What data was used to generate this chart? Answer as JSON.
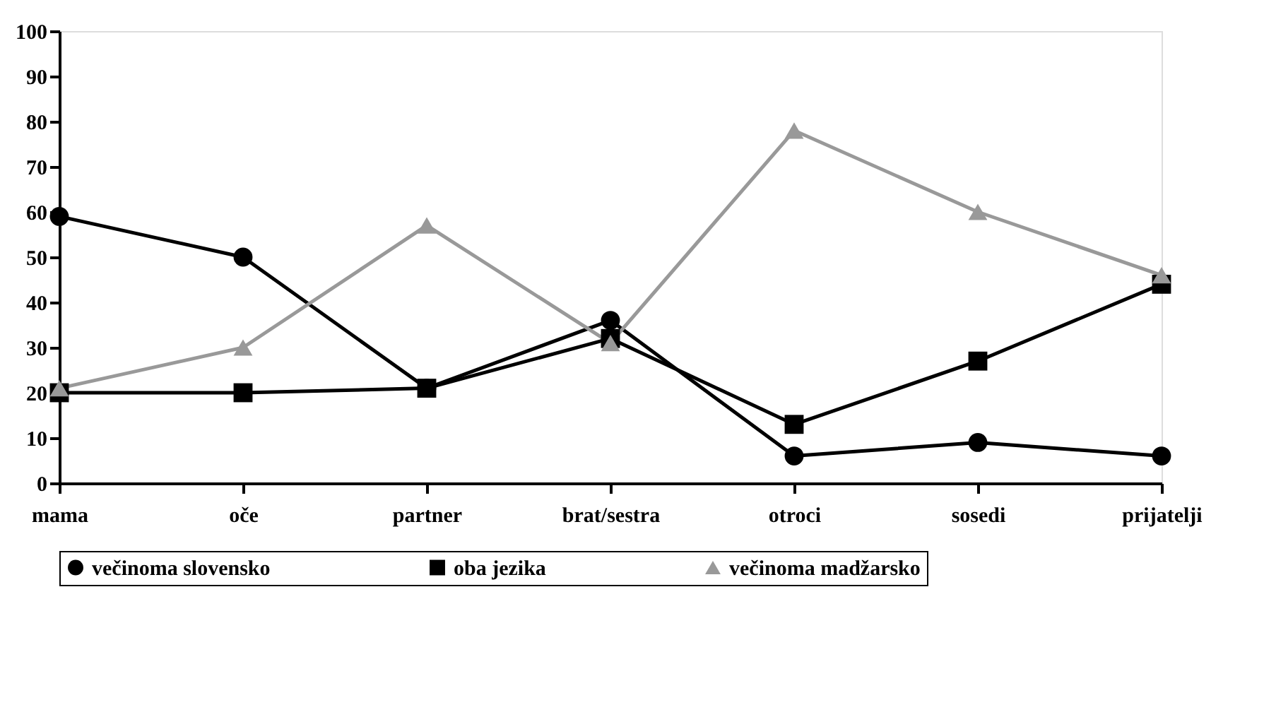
{
  "chart_data": {
    "type": "line",
    "categories": [
      "mama",
      "oče",
      "partner",
      "brat/sestra",
      "otroci",
      "sosedi",
      "prijatelji"
    ],
    "series": [
      {
        "name": "večinoma slovensko",
        "color": "#000000",
        "marker": "circle",
        "values": [
          59,
          50,
          21,
          36,
          6,
          9,
          6
        ]
      },
      {
        "name": "oba jezika",
        "color": "#000000",
        "marker": "square",
        "values": [
          20,
          20,
          21,
          32,
          13,
          27,
          44
        ]
      },
      {
        "name": "večinoma madžarsko",
        "color": "#999999",
        "marker": "triangle",
        "values": [
          21,
          30,
          57,
          31,
          78,
          60,
          46
        ]
      }
    ],
    "ylim": [
      0,
      100
    ],
    "yticks": [
      0,
      10,
      20,
      30,
      40,
      50,
      60,
      70,
      80,
      90,
      100
    ],
    "grid": false,
    "legend": "bottom",
    "line_style": "solid"
  }
}
